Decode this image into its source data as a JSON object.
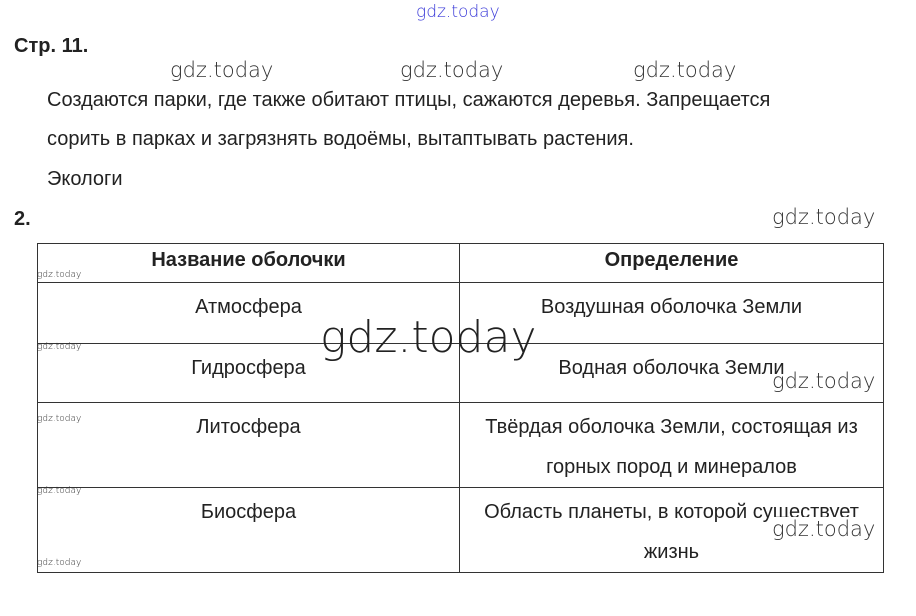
{
  "watermark": "gdz.today",
  "page_label": "Стр. 11.",
  "paragraph": {
    "line1": "Создаются парки, где также обитают птицы, сажаются деревья. Запрещается",
    "line2": "сорить в парках и загрязнять водоёмы, вытаптывать растения.",
    "line3": "Экологи"
  },
  "task2": {
    "number": "2.",
    "headers": [
      "Название оболочки",
      "Определение"
    ],
    "rows": [
      {
        "name": "Атмосфера",
        "definition": "Воздушная оболочка Земли"
      },
      {
        "name": "Гидросфера",
        "definition": "Водная оболочка Земли"
      },
      {
        "name": "Литосфера",
        "definition": "Твёрдая оболочка Земли, состоящая из горных пород и минералов"
      },
      {
        "name": "Биосфера",
        "definition": "Область планеты, в которой существует жизнь"
      }
    ]
  },
  "colors": {
    "top_watermark": "#3a3ad8"
  }
}
